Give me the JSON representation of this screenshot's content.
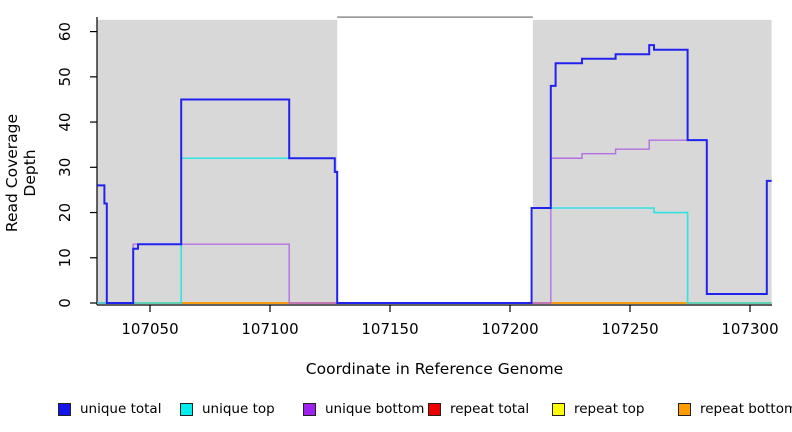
{
  "figure": {
    "y_axis_title": "Read Coverage Depth",
    "x_axis_title": "Coordinate in Reference Genome"
  },
  "chart_data": {
    "type": "line",
    "subtype": "step-coverage",
    "title": "",
    "xlabel": "Coordinate in Reference Genome",
    "ylabel": "Read Coverage Depth",
    "xlim": [
      107028,
      107309
    ],
    "ylim": [
      0,
      63
    ],
    "x_ticks": [
      107050,
      107100,
      107150,
      107200,
      107250,
      107300
    ],
    "y_ticks": [
      0,
      10,
      20,
      30,
      40,
      50,
      60
    ],
    "grid": false,
    "legend_position": "bottom",
    "background_color": "#ffffff",
    "shaded_region_color": "#d8d8d8",
    "gap_top_line": {
      "x0": 107128,
      "x1": 107209.5,
      "y": 63.2,
      "color": "#8c8c8c"
    },
    "shaded_regions": [
      {
        "x0": 107028,
        "x1": 107128,
        "y0": 0,
        "y1": 62.6
      },
      {
        "x0": 107209.5,
        "x1": 107309,
        "y0": 0,
        "y1": 62.6
      }
    ],
    "series": [
      {
        "name": "repeat top",
        "color": "#f0f000",
        "width": 1.4,
        "points": [
          [
            107028,
            0
          ],
          [
            107309,
            0
          ]
        ]
      },
      {
        "name": "repeat total",
        "color": "#e02020",
        "width": 1.4,
        "points": [
          [
            107028,
            0
          ],
          [
            107309,
            0
          ]
        ]
      },
      {
        "name": "repeat bottom",
        "color": "#ffa500",
        "width": 1.4,
        "points": [
          [
            107028,
            0
          ],
          [
            107309,
            0
          ]
        ]
      },
      {
        "name": "unique bottom",
        "color": "#b26fe3",
        "width": 1.4,
        "points": [
          [
            107028,
            0
          ],
          [
            107043,
            0
          ],
          [
            107043,
            13
          ],
          [
            107108,
            13
          ],
          [
            107108,
            0
          ],
          [
            107217,
            0
          ],
          [
            107217,
            32
          ],
          [
            107230,
            32
          ],
          [
            107230,
            33
          ],
          [
            107244,
            33
          ],
          [
            107244,
            34
          ],
          [
            107258,
            34
          ],
          [
            107258,
            36
          ],
          [
            107282,
            36
          ],
          [
            107282,
            2
          ],
          [
            107307,
            2
          ],
          [
            107307,
            27
          ],
          [
            107309,
            27
          ]
        ]
      },
      {
        "name": "unique top",
        "color": "#2fe3e3",
        "width": 1.6,
        "points": [
          [
            107028,
            0
          ],
          [
            107063,
            0
          ],
          [
            107063,
            32
          ],
          [
            107127,
            32
          ],
          [
            107127,
            29
          ],
          [
            107128,
            29
          ],
          [
            107128,
            0
          ],
          [
            107209,
            0
          ],
          [
            107209,
            21
          ],
          [
            107260,
            21
          ],
          [
            107260,
            20
          ],
          [
            107274,
            20
          ],
          [
            107274,
            0
          ],
          [
            107309,
            0
          ]
        ]
      },
      {
        "name": "unique total",
        "color": "#2222ee",
        "width": 2,
        "points": [
          [
            107028,
            26
          ],
          [
            107031,
            26
          ],
          [
            107031,
            22
          ],
          [
            107032,
            22
          ],
          [
            107032,
            0
          ],
          [
            107043,
            0
          ],
          [
            107043,
            12
          ],
          [
            107045,
            12
          ],
          [
            107045,
            13
          ],
          [
            107063,
            13
          ],
          [
            107063,
            45
          ],
          [
            107108,
            45
          ],
          [
            107108,
            32
          ],
          [
            107127,
            32
          ],
          [
            107127,
            29
          ],
          [
            107128,
            29
          ],
          [
            107128,
            0
          ],
          [
            107209,
            0
          ],
          [
            107209,
            21
          ],
          [
            107217,
            21
          ],
          [
            107217,
            48
          ],
          [
            107219,
            48
          ],
          [
            107219,
            53
          ],
          [
            107230,
            53
          ],
          [
            107230,
            54
          ],
          [
            107244,
            54
          ],
          [
            107244,
            55
          ],
          [
            107258,
            55
          ],
          [
            107258,
            57
          ],
          [
            107260,
            57
          ],
          [
            107260,
            56
          ],
          [
            107274,
            56
          ],
          [
            107274,
            36
          ],
          [
            107282,
            36
          ],
          [
            107282,
            2
          ],
          [
            107307,
            2
          ],
          [
            107307,
            27
          ],
          [
            107309,
            27
          ]
        ]
      }
    ],
    "legend": [
      {
        "label": "unique total",
        "color": "#1414ee"
      },
      {
        "label": "unique top",
        "color": "#00eeee"
      },
      {
        "label": "unique bottom",
        "color": "#a020f0"
      },
      {
        "label": "repeat total",
        "color": "#ee0000"
      },
      {
        "label": "repeat top",
        "color": "#ffff00"
      },
      {
        "label": "repeat bottom",
        "color": "#ff9c00"
      }
    ]
  }
}
